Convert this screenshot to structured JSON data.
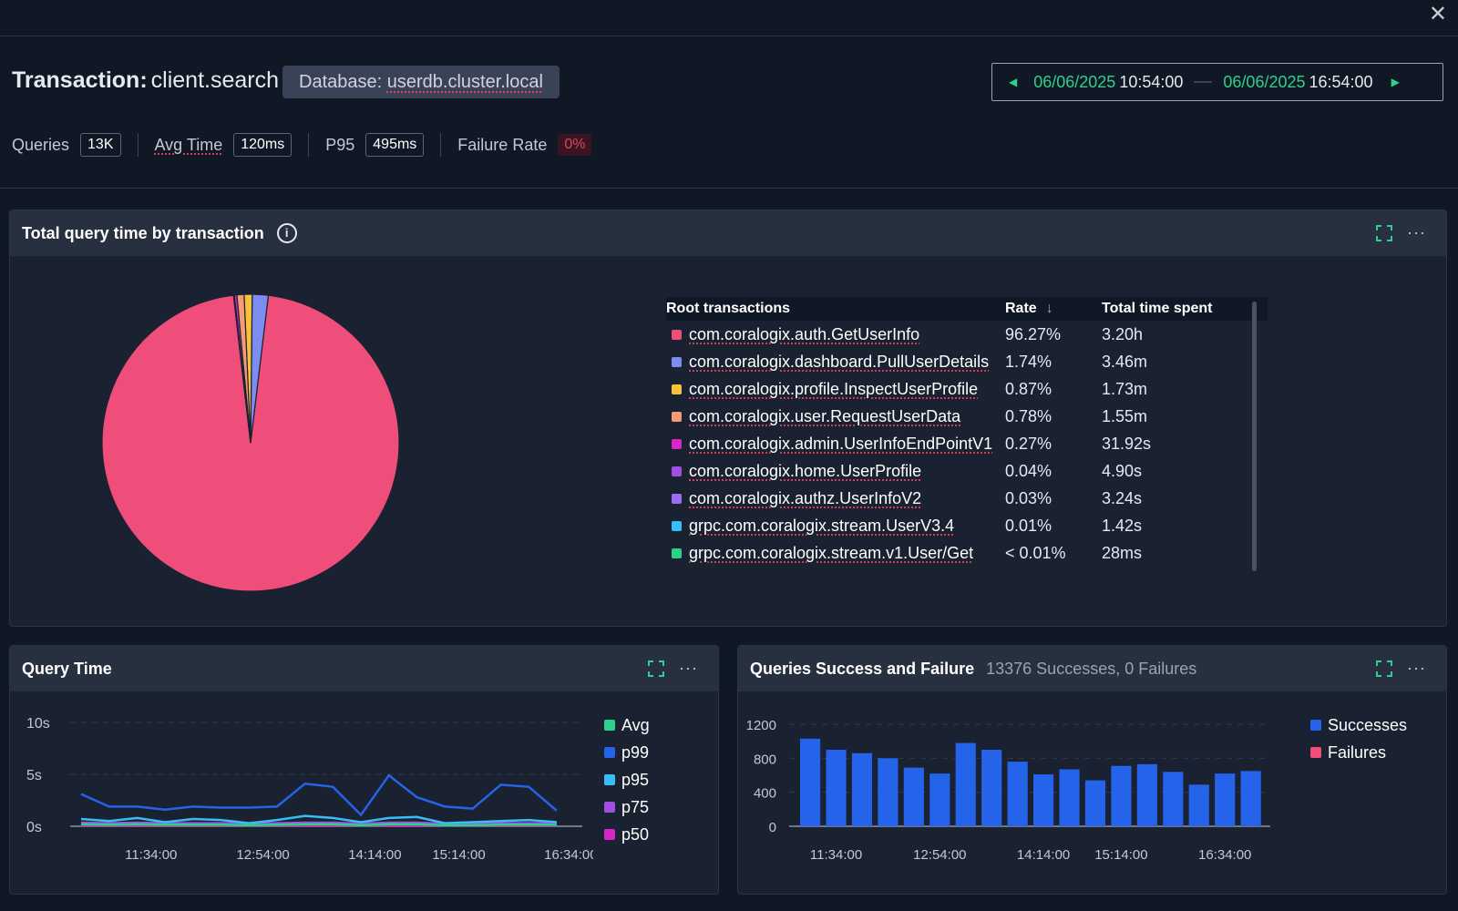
{
  "header": {
    "close_icon": "close-icon",
    "title_label": "Transaction:",
    "title_value": "client.search",
    "db_label": "Database:",
    "db_value": "userdb.cluster.local"
  },
  "time_range": {
    "start_date": "06/06/2025",
    "start_time": "10:54:00",
    "end_date": "06/06/2025",
    "end_time": "16:54:00"
  },
  "stats": {
    "queries_label": "Queries",
    "queries_value": "13K",
    "avg_label": "Avg Time",
    "avg_value": "120ms",
    "p95_label": "P95",
    "p95_value": "495ms",
    "failure_label": "Failure Rate",
    "failure_value": "0%"
  },
  "colors": {
    "accent": "#2fd08a",
    "failure": "#e0455f",
    "bar": "#2563eb"
  },
  "total_panel": {
    "title": "Total query time by transaction",
    "table": {
      "headers": [
        "Root transactions",
        "Rate",
        "Total time spent"
      ],
      "rows": [
        {
          "name": "com.coralogix.auth.GetUserInfo",
          "rate": "96.27%",
          "time": "3.20h",
          "color": "#ef4d7a"
        },
        {
          "name": "com.coralogix.dashboard.PullUserDetails",
          "rate": "1.74%",
          "time": "3.46m",
          "color": "#7c8cf0"
        },
        {
          "name": "com.coralogix.profile.InspectUserProfile",
          "rate": "0.87%",
          "time": "1.73m",
          "color": "#f7c23a"
        },
        {
          "name": "com.coralogix.user.RequestUserData",
          "rate": "0.78%",
          "time": "1.55m",
          "color": "#f59a73"
        },
        {
          "name": "com.coralogix.admin.UserInfoEndPointV1",
          "rate": "0.27%",
          "time": "31.92s",
          "color": "#d626c8"
        },
        {
          "name": "com.coralogix.home.UserProfile",
          "rate": "0.04%",
          "time": "4.90s",
          "color": "#a04fe0"
        },
        {
          "name": "com.coralogix.authz.UserInfoV2",
          "rate": "0.03%",
          "time": "3.24s",
          "color": "#9a6ef0"
        },
        {
          "name": "grpc.com.coralogix.stream.UserV3.4",
          "rate": "0.01%",
          "time": "1.42s",
          "color": "#38bdf8"
        },
        {
          "name": "grpc.com.coralogix.stream.v1.User/Get",
          "rate": "< 0.01%",
          "time": "28ms",
          "color": "#2ecf8a"
        }
      ]
    }
  },
  "query_time_panel": {
    "title": "Query Time"
  },
  "success_panel": {
    "title": "Queries Success and Failure",
    "subtitle": "13376 Successes, 0 Failures"
  },
  "chart_data": [
    {
      "type": "pie",
      "labels": [
        "com.coralogix.auth.GetUserInfo",
        "com.coralogix.dashboard.PullUserDetails",
        "com.coralogix.profile.InspectUserProfile",
        "com.coralogix.user.RequestUserData",
        "com.coralogix.admin.UserInfoEndPointV1",
        "com.coralogix.home.UserProfile",
        "com.coralogix.authz.UserInfoV2",
        "grpc.com.coralogix.stream.UserV3.4",
        "grpc.com.coralogix.stream.v1.User/Get"
      ],
      "values": [
        96.27,
        1.74,
        0.87,
        0.78,
        0.27,
        0.04,
        0.03,
        0.01,
        0.005
      ],
      "colors": [
        "#ef4d7a",
        "#7c8cf0",
        "#f7c23a",
        "#f59a73",
        "#d626c8",
        "#a04fe0",
        "#9a6ef0",
        "#38bdf8",
        "#2ecf8a"
      ]
    },
    {
      "type": "line",
      "x_ticks": [
        "11:34:00",
        "12:54:00",
        "14:14:00",
        "15:14:00",
        "16:34:00"
      ],
      "x_tick_positions": [
        3,
        7,
        11,
        14,
        18
      ],
      "y_ticks": [
        "10s",
        "5s",
        "0s"
      ],
      "ylim": [
        0,
        10
      ],
      "series": [
        {
          "name": "Avg",
          "color": "#2ecf8a",
          "values": [
            0.2,
            0.15,
            0.2,
            0.15,
            0.15,
            0.15,
            0.1,
            0.15,
            0.2,
            0.2,
            0.1,
            0.2,
            0.2,
            0.1,
            0.1,
            0.15,
            0.15,
            0.15
          ]
        },
        {
          "name": "p99",
          "color": "#2563eb",
          "values": [
            3.1,
            1.9,
            1.9,
            1.6,
            1.9,
            1.8,
            1.8,
            1.9,
            4.1,
            3.8,
            1.1,
            4.9,
            2.8,
            1.9,
            1.7,
            4,
            3.8,
            1.5
          ]
        },
        {
          "name": "p95",
          "color": "#38bdf8",
          "values": [
            0.7,
            0.5,
            0.8,
            0.4,
            0.7,
            0.6,
            0.3,
            0.6,
            1,
            0.8,
            0.4,
            0.8,
            0.9,
            0.3,
            0.4,
            0.5,
            0.6,
            0.4
          ]
        },
        {
          "name": "p75",
          "color": "#a04fe0",
          "values": [
            0.35,
            0.3,
            0.35,
            0.3,
            0.3,
            0.3,
            0.25,
            0.3,
            0.35,
            0.35,
            0.25,
            0.35,
            0.35,
            0.25,
            0.25,
            0.3,
            0.3,
            0.3
          ]
        },
        {
          "name": "p50",
          "color": "#d626c8",
          "values": [
            0.1,
            0.1,
            0.1,
            0.1,
            0.1,
            0.1,
            0.1,
            0.1,
            0.1,
            0.1,
            0.1,
            0.1,
            0.1,
            0.1,
            0.1,
            0.1,
            0.1,
            0.1
          ]
        }
      ]
    },
    {
      "type": "bar",
      "x_ticks": [
        "11:34:00",
        "12:54:00",
        "14:14:00",
        "15:14:00",
        "16:34:00"
      ],
      "x_tick_positions": [
        1,
        5,
        9,
        12,
        16
      ],
      "y_ticks": [
        1200,
        800,
        400,
        0
      ],
      "ylim": [
        0,
        1200
      ],
      "series": [
        {
          "name": "Successes",
          "color": "#2563eb",
          "values": [
            1030,
            900,
            860,
            800,
            690,
            620,
            980,
            900,
            760,
            610,
            670,
            540,
            710,
            730,
            640,
            490,
            620,
            650
          ]
        },
        {
          "name": "Failures",
          "color": "#ef4d7a",
          "values": [
            0,
            0,
            0,
            0,
            0,
            0,
            0,
            0,
            0,
            0,
            0,
            0,
            0,
            0,
            0,
            0,
            0,
            0
          ]
        }
      ]
    }
  ]
}
